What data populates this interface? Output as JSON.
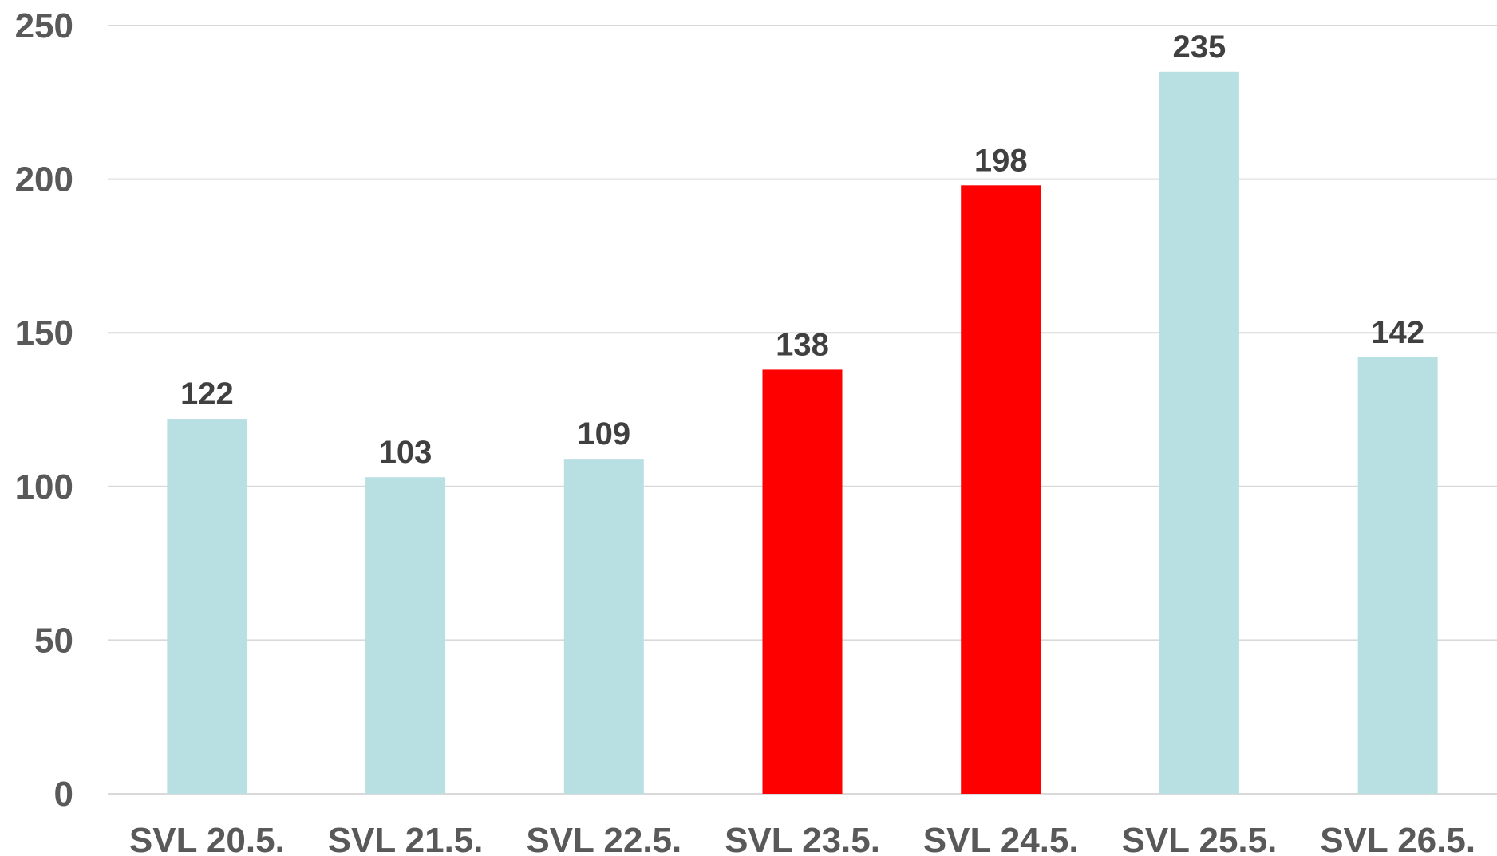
{
  "chart_data": {
    "type": "bar",
    "title": "",
    "xlabel": "",
    "ylabel": "",
    "categories": [
      "SVL 20.5.",
      "SVL 21.5.",
      "SVL 22.5.",
      "SVL 23.5.",
      "SVL 24.5.",
      "SVL 25.5.",
      "SVL 26.5."
    ],
    "values": [
      122,
      103,
      109,
      138,
      198,
      235,
      142
    ],
    "bar_colors": [
      "#b8dfe2",
      "#b8dfe2",
      "#b8dfe2",
      "#ff0000",
      "#ff0000",
      "#b8dfe2",
      "#b8dfe2"
    ],
    "ylim": [
      0,
      250
    ],
    "yticks": [
      "0",
      "50",
      "100",
      "150",
      "200",
      "250"
    ],
    "grid": true,
    "legend": "none",
    "colors": {
      "gridline": "#d9d9d9",
      "axis_text": "#595959",
      "data_label": "#404040"
    }
  }
}
